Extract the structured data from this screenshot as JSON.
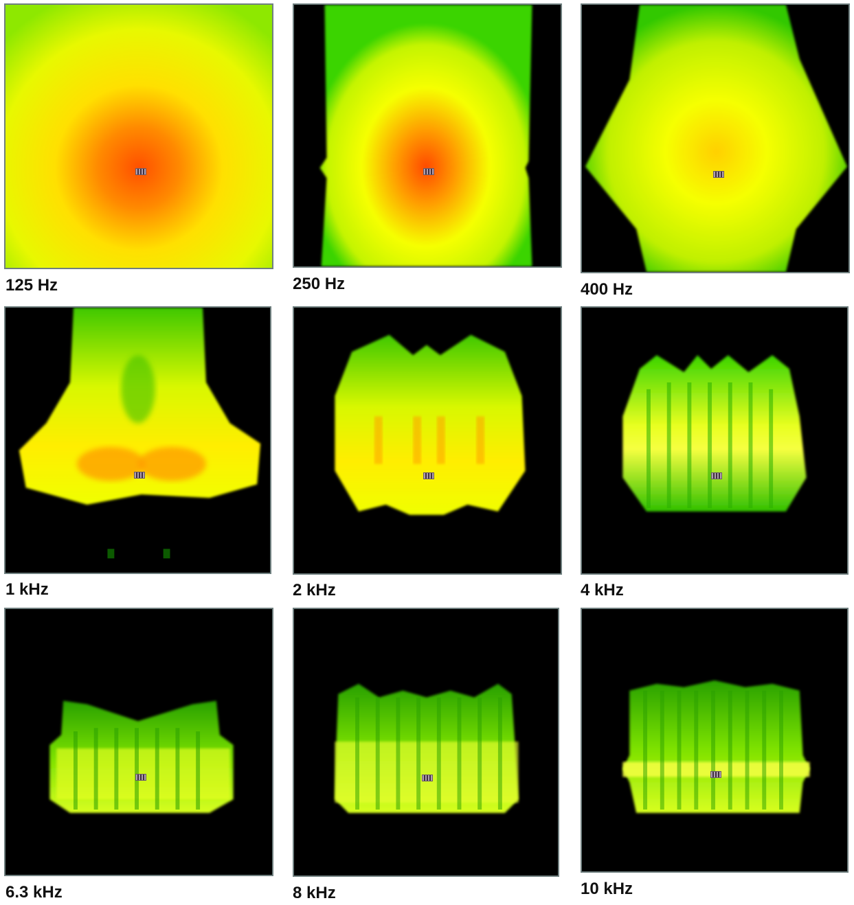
{
  "panels": [
    {
      "label": "125 Hz"
    },
    {
      "label": "250 Hz"
    },
    {
      "label": "400 Hz"
    },
    {
      "label": "1 kHz"
    },
    {
      "label": "2 kHz"
    },
    {
      "label": "4 kHz"
    },
    {
      "label": "6.3 kHz"
    },
    {
      "label": "8 kHz"
    },
    {
      "label": "10 kHz"
    }
  ],
  "colors": {
    "background": "#000000",
    "low": "#2bd400",
    "mid": "#f2ff00",
    "high": "#ff5a00",
    "border": "#6f7f7f"
  }
}
